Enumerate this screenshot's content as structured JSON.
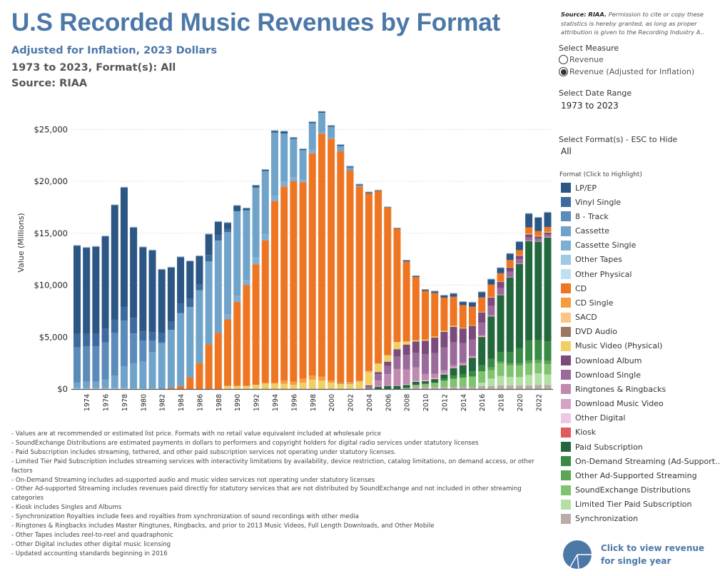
{
  "header": {
    "title": "U.S Recorded Music Revenues by Format",
    "subtitle": "Adjusted for Inflation, 2023 Dollars",
    "range_line": "1973 to 2023, Format(s): All",
    "source_line": "Source: RIAA"
  },
  "side": {
    "source_bold": "Source: RIAA.",
    "source_text": " Permission to cite or copy these statistics is hereby granted, as long as proper attribution is given to the Recording Industry A..",
    "measure_label": "Select Measure",
    "measure_options": [
      "Revenue",
      "Revenue (Adjusted for Inflation)"
    ],
    "measure_selected": 1,
    "date_label": "Select Date Range",
    "date_value": "1973 to 2023",
    "format_label": "Select Format(s) - ESC to Hide",
    "format_value": "All",
    "legend_title": "Format (Click to Highlight)",
    "pie_button": "Click to view revenue for single year"
  },
  "notes": [
    "- Values are at recommended or estimated list price. Formats with no retail value equivalent included at wholesale price",
    "- SoundExchange Distributions are estimated payments in dollars to performers and copyright holders for digital radio services under statutory licenses",
    "- Paid Subscription includes streaming, tethered, and other paid subscription services not operating under statutory licenses.",
    "- Limited Tier Paid Subscription includes streaming services with interactivity limitations by availability, device restriction, catalog limitations, on demand access, or other factors",
    "- On-Demand Streaming includes ad-supported audio and music video services not operating under statutory licenses",
    "- Other Ad-supported Streaming includes revenues paid directly for statutory services that are not distributed by SoundExchange and not included in other streaming categories",
    "- Kiosk includes Singles and Albums",
    "- Synchronization Royalties include fees and royalties from synchronization of sound recordings with other media",
    "- Ringtones & Ringbacks includes Master Ringtunes, Ringbacks, and prior to 2013 Music Videos, Full Length Downloads, and Other Mobile",
    "- Other Tapes includes reel-to-reel and quadraphonic",
    "- Other Digital includes other digital music licensing",
    "- Updated accounting standards beginning in 2016"
  ],
  "chart_data": {
    "type": "bar",
    "stacked": true,
    "title": "U.S Recorded Music Revenues by Format",
    "xlabel": "",
    "ylabel": "Value (Millions)",
    "ylim": [
      0,
      27000
    ],
    "yticks": [
      0,
      5000,
      10000,
      15000,
      20000,
      25000
    ],
    "ytick_labels": [
      "$0",
      "$5,000",
      "$10,000",
      "$15,000",
      "$20,000",
      "$25,000"
    ],
    "x_start": 1973,
    "x_end": 2023,
    "xtick_labels": [
      "1974",
      "1976",
      "1978",
      "1980",
      "1982",
      "1984",
      "1986",
      "1988",
      "1990",
      "1992",
      "1994",
      "1996",
      "1998",
      "2000",
      "2002",
      "2004",
      "2006",
      "2008",
      "2010",
      "2012",
      "2014",
      "2016",
      "2018",
      "2020",
      "2022"
    ],
    "grid": true,
    "legend_position": "right",
    "series_note": "values in $ millions; each series starts at 'start' year, missing later years are 0",
    "series": [
      {
        "name": "LP/EP",
        "color": "#2c5784",
        "start": 1973,
        "values": [
          8500,
          8300,
          8400,
          8900,
          11000,
          11500,
          8700,
          8100,
          7900,
          6100,
          5200,
          4500,
          3600,
          2700,
          2000,
          1300,
          600,
          500,
          200,
          200,
          100,
          150,
          200,
          100,
          100,
          100,
          100,
          100,
          100,
          100,
          100,
          100,
          50,
          50,
          50,
          100,
          100,
          100,
          150,
          200,
          300,
          300,
          400,
          500,
          500,
          500,
          600,
          800,
          1300,
          1300,
          1400
        ]
      },
      {
        "name": "Vinyl Single",
        "color": "#3d6b9f",
        "start": 1973,
        "values": [
          1300,
          1200,
          1200,
          1300,
          1300,
          1300,
          1500,
          900,
          800,
          900,
          800,
          900,
          800,
          600,
          600,
          500,
          300,
          50
        ]
      },
      {
        "name": "8 - Track",
        "color": "#5b8bb8",
        "start": 1973,
        "values": [
          3400,
          3400,
          3400,
          3600,
          4100,
          4400,
          2900,
          2000,
          1100,
          100
        ]
      },
      {
        "name": "Cassette",
        "color": "#6fa3c9",
        "start": 1973,
        "values": [
          500,
          600,
          600,
          800,
          1200,
          2100,
          2400,
          2600,
          3500,
          4400,
          5600,
          7000,
          6800,
          7000,
          8000,
          8900,
          7900,
          8100,
          6700,
          6700,
          6100,
          6100,
          4600,
          3700,
          2800,
          2600,
          1900,
          1100,
          500,
          300,
          100
        ]
      },
      {
        "name": "Cassette Single",
        "color": "#7eaed4",
        "start": 1989,
        "values": [
          500,
          600,
          500,
          700,
          600,
          500,
          500,
          400,
          300,
          300,
          100,
          50
        ]
      },
      {
        "name": "Other Tapes",
        "color": "#9fc8e5",
        "start": 1973,
        "values": [
          100,
          100,
          100,
          100,
          100,
          100,
          50,
          50,
          50
        ]
      },
      {
        "name": "Other Physical",
        "color": "#bde0f2",
        "start": 1973,
        "values": []
      },
      {
        "name": "CD",
        "color": "#ee7623",
        "start": 1983,
        "values": [
          100,
          300,
          1100,
          2500,
          4300,
          5400,
          6400,
          8100,
          9700,
          11600,
          13700,
          17500,
          18700,
          19300,
          18900,
          21400,
          23400,
          23300,
          22300,
          20400,
          18700,
          17100,
          16600,
          14200,
          10900,
          7700,
          6100,
          4700,
          4200,
          3200,
          2800,
          2200,
          1800,
          1400,
          1200,
          800,
          700,
          500,
          600,
          450,
          450
        ]
      },
      {
        "name": "CD Single",
        "color": "#f59c3d",
        "start": 1993,
        "values": [
          100,
          100,
          300,
          300,
          400,
          400,
          400,
          200,
          50,
          30,
          20,
          20,
          10,
          0,
          0,
          0,
          0,
          0,
          0,
          0,
          0,
          0,
          0,
          0,
          0,
          0,
          0,
          0,
          50,
          30,
          50
        ]
      },
      {
        "name": "SACD",
        "color": "#fdc584",
        "start": 2002,
        "values": [
          50,
          50,
          50,
          30,
          20
        ]
      },
      {
        "name": "DVD Audio",
        "color": "#9c7660",
        "start": 2001,
        "values": [
          50,
          50,
          30,
          20
        ]
      },
      {
        "name": "Music Video (Physical)",
        "color": "#f0cf65",
        "start": 1989,
        "values": [
          300,
          300,
          300,
          400,
          500,
          500,
          500,
          400,
          600,
          900,
          800,
          600,
          500,
          500,
          700,
          1300,
          800,
          600,
          700,
          300,
          100,
          100,
          100,
          100,
          100,
          50,
          50,
          50,
          40,
          40,
          30,
          30,
          30,
          30,
          30
        ]
      },
      {
        "name": "Download Album",
        "color": "#7a4b7b",
        "start": 2004,
        "values": [
          100,
          200,
          400,
          700,
          1000,
          1100,
          1300,
          1500,
          1500,
          1500,
          1400,
          1300,
          1000,
          800,
          600,
          400,
          350,
          300,
          200,
          200
        ]
      },
      {
        "name": "Download Single",
        "color": "#9a6a9a",
        "start": 2004,
        "values": [
          150,
          600,
          800,
          1200,
          1400,
          1400,
          1900,
          2000,
          2200,
          2200,
          1900,
          1600,
          1200,
          900,
          600,
          500,
          400,
          300,
          250,
          200
        ]
      },
      {
        "name": "Ringtones & Ringbacks",
        "color": "#c08ab0",
        "start": 2004,
        "values": [
          50,
          600,
          1100,
          1600,
          1400,
          1300,
          600,
          400,
          300,
          200,
          150,
          100,
          100,
          100,
          50,
          30,
          30,
          30,
          30,
          50
        ]
      },
      {
        "name": "Download Music Video",
        "color": "#d4a2c4",
        "start": 2005,
        "values": [
          30,
          30,
          30,
          30,
          30,
          30,
          30,
          30,
          10,
          10,
          10,
          10,
          10,
          10,
          10,
          10,
          10,
          10,
          10
        ]
      },
      {
        "name": "Other Digital",
        "color": "#ecc8e2",
        "start": 2008,
        "values": [
          50,
          50,
          50,
          50,
          50,
          50,
          50,
          50,
          50
        ]
      },
      {
        "name": "Kiosk",
        "color": "#e05a5e",
        "start": 2010,
        "values": [
          20,
          20,
          20,
          20,
          20,
          20,
          20
        ]
      },
      {
        "name": "Paid Subscription",
        "color": "#23683c",
        "start": 2004,
        "values": [
          50,
          200,
          300,
          300,
          300,
          300,
          250,
          350,
          400,
          700,
          900,
          1300,
          2700,
          4100,
          5500,
          7200,
          8100,
          9600,
          9500,
          10000
        ]
      },
      {
        "name": "On-Demand Streaming (Ad-Supported)",
        "color": "#388a45",
        "start": 2012,
        "values": [
          200,
          300,
          300,
          500,
          600,
          800,
          900,
          1100,
          1500,
          1900,
          1900,
          1900
        ]
      },
      {
        "name": "Other Ad-Supported Streaming",
        "color": "#5aa556",
        "start": 2017,
        "values": [
          300,
          200,
          200,
          200,
          300,
          300,
          300
        ]
      },
      {
        "name": "SoundExchange Distributions",
        "color": "#7fc36f",
        "start": 2008,
        "values": [
          100,
          200,
          300,
          400,
          600,
          800,
          900,
          1000,
          1100,
          800,
          1200,
          1100,
          1100,
          1100,
          1000,
          1000
        ]
      },
      {
        "name": "Limited Tier Paid Subscription",
        "color": "#b4e0a6",
        "start": 2016,
        "values": [
          300,
          700,
          900,
          800,
          800,
          1000,
          1100,
          1000
        ]
      },
      {
        "name": "Synchronization",
        "color": "#b9aea7",
        "start": 2009,
        "values": [
          200,
          200,
          200,
          200,
          200,
          200,
          200,
          300,
          300,
          350,
          350,
          350,
          350,
          400,
          400
        ]
      }
    ]
  },
  "legend_labels": [
    "LP/EP",
    "Vinyl Single",
    "8 - Track",
    "Cassette",
    "Cassette Single",
    "Other Tapes",
    "Other Physical",
    "CD",
    "CD Single",
    "SACD",
    "DVD Audio",
    "Music Video (Physical)",
    "Download Album",
    "Download Single",
    "Ringtones & Ringbacks",
    "Download Music Video",
    "Other Digital",
    "Kiosk",
    "Paid Subscription",
    "On-Demand Streaming (Ad-Support..",
    "Other Ad-Supported Streaming",
    "SoundExchange Distributions",
    "Limited Tier Paid Subscription",
    "Synchronization"
  ],
  "colors": {
    "accent": "#4c78a8"
  }
}
